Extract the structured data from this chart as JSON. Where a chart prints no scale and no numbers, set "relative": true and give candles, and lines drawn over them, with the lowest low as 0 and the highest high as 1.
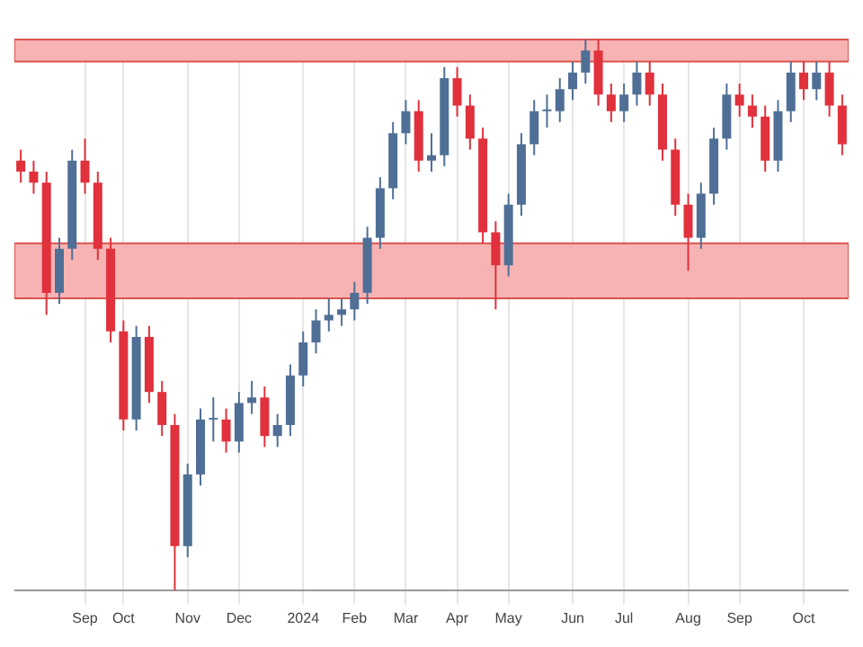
{
  "chart_data": {
    "type": "candlestick",
    "relative": true,
    "grid": "x",
    "categories": [
      null,
      null,
      null,
      null,
      null,
      "Sep",
      null,
      null,
      "Oct",
      null,
      null,
      null,
      null,
      "Nov",
      null,
      null,
      null,
      "Dec",
      null,
      null,
      null,
      null,
      "2024",
      null,
      null,
      null,
      "Feb",
      null,
      null,
      null,
      "Mar",
      null,
      null,
      null,
      "Apr",
      null,
      null,
      null,
      "May",
      null,
      null,
      null,
      null,
      "Jun",
      null,
      null,
      null,
      "Jul",
      null,
      null,
      null,
      null,
      "Aug",
      null,
      null,
      null,
      "Sep",
      null,
      null,
      null,
      null,
      "Oct",
      null,
      null,
      null
    ],
    "ohlc": [
      [
        0.78,
        0.8,
        0.74,
        0.76
      ],
      [
        0.76,
        0.78,
        0.72,
        0.74
      ],
      [
        0.74,
        0.76,
        0.5,
        0.54
      ],
      [
        0.54,
        0.64,
        0.52,
        0.62
      ],
      [
        0.62,
        0.8,
        0.6,
        0.78
      ],
      [
        0.78,
        0.82,
        0.72,
        0.74
      ],
      [
        0.74,
        0.76,
        0.6,
        0.62
      ],
      [
        0.62,
        0.64,
        0.45,
        0.47
      ],
      [
        0.47,
        0.49,
        0.29,
        0.31
      ],
      [
        0.31,
        0.48,
        0.29,
        0.46
      ],
      [
        0.46,
        0.48,
        0.34,
        0.36
      ],
      [
        0.36,
        0.38,
        0.28,
        0.3
      ],
      [
        0.3,
        0.32,
        0,
        0.08
      ],
      [
        0.08,
        0.23,
        0.06,
        0.21
      ],
      [
        0.21,
        0.33,
        0.19,
        0.31
      ],
      [
        0.31,
        0.35,
        0.27,
        0.31
      ],
      [
        0.31,
        0.33,
        0.25,
        0.27
      ],
      [
        0.27,
        0.36,
        0.25,
        0.34
      ],
      [
        0.34,
        0.38,
        0.32,
        0.35
      ],
      [
        0.35,
        0.37,
        0.26,
        0.28
      ],
      [
        0.28,
        0.32,
        0.26,
        0.3
      ],
      [
        0.3,
        0.41,
        0.28,
        0.39
      ],
      [
        0.39,
        0.47,
        0.37,
        0.45
      ],
      [
        0.45,
        0.51,
        0.43,
        0.49
      ],
      [
        0.49,
        0.53,
        0.47,
        0.5
      ],
      [
        0.5,
        0.53,
        0.48,
        0.51
      ],
      [
        0.51,
        0.56,
        0.49,
        0.54
      ],
      [
        0.54,
        0.66,
        0.52,
        0.64
      ],
      [
        0.64,
        0.75,
        0.62,
        0.73
      ],
      [
        0.73,
        0.85,
        0.71,
        0.83
      ],
      [
        0.83,
        0.89,
        0.81,
        0.87
      ],
      [
        0.87,
        0.89,
        0.76,
        0.78
      ],
      [
        0.78,
        0.83,
        0.76,
        0.79
      ],
      [
        0.79,
        0.95,
        0.77,
        0.93
      ],
      [
        0.93,
        0.95,
        0.86,
        0.88
      ],
      [
        0.88,
        0.9,
        0.8,
        0.82
      ],
      [
        0.82,
        0.84,
        0.63,
        0.65
      ],
      [
        0.65,
        0.67,
        0.51,
        0.59
      ],
      [
        0.59,
        0.72,
        0.57,
        0.7
      ],
      [
        0.7,
        0.83,
        0.68,
        0.81
      ],
      [
        0.81,
        0.89,
        0.79,
        0.87
      ],
      [
        0.87,
        0.9,
        0.84,
        0.87
      ],
      [
        0.87,
        0.93,
        0.85,
        0.91
      ],
      [
        0.91,
        0.96,
        0.89,
        0.94
      ],
      [
        0.94,
        1,
        0.92,
        0.98
      ],
      [
        0.98,
        1,
        0.88,
        0.9
      ],
      [
        0.9,
        0.92,
        0.85,
        0.87
      ],
      [
        0.87,
        0.92,
        0.85,
        0.9
      ],
      [
        0.9,
        0.96,
        0.88,
        0.94
      ],
      [
        0.94,
        0.96,
        0.88,
        0.9
      ],
      [
        0.9,
        0.92,
        0.78,
        0.8
      ],
      [
        0.8,
        0.82,
        0.68,
        0.7
      ],
      [
        0.7,
        0.72,
        0.58,
        0.64
      ],
      [
        0.64,
        0.74,
        0.62,
        0.72
      ],
      [
        0.72,
        0.84,
        0.7,
        0.82
      ],
      [
        0.82,
        0.92,
        0.8,
        0.9
      ],
      [
        0.9,
        0.92,
        0.86,
        0.88
      ],
      [
        0.88,
        0.9,
        0.84,
        0.86
      ],
      [
        0.86,
        0.88,
        0.76,
        0.78
      ],
      [
        0.78,
        0.89,
        0.76,
        0.87
      ],
      [
        0.87,
        0.96,
        0.85,
        0.94
      ],
      [
        0.94,
        0.96,
        0.89,
        0.91
      ],
      [
        0.91,
        0.96,
        0.89,
        0.94
      ],
      [
        0.94,
        0.96,
        0.86,
        0.88
      ],
      [
        0.88,
        0.9,
        0.79,
        0.81
      ]
    ],
    "bands": [
      {
        "axis": "y",
        "from": 0.96,
        "to": 1,
        "color": "#f7b3b3"
      },
      {
        "axis": "y",
        "from": 0.53,
        "to": 0.63,
        "color": "#f7b3b3"
      }
    ]
  }
}
